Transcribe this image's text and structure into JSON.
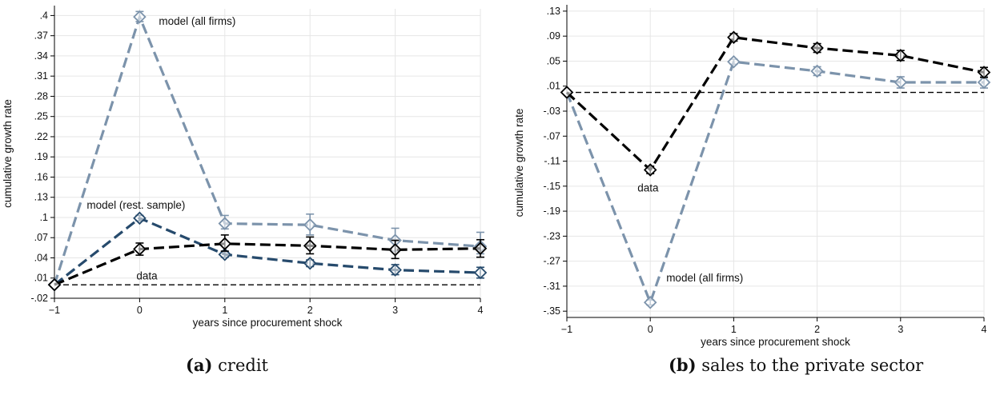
{
  "chart_data": [
    {
      "type": "line",
      "panel_label": "(a)",
      "caption": "credit",
      "xlabel": "years since procurement shock",
      "ylabel": "cumulative growth rate",
      "xlim": [
        -1,
        4
      ],
      "ylim": [
        -0.02,
        0.41
      ],
      "x_ticks": [
        "-1",
        "0",
        "1",
        "2",
        "3",
        "4"
      ],
      "y_ticks": [
        "-.02",
        ".01",
        ".04",
        ".07",
        ".1",
        ".13",
        ".16",
        ".19",
        ".22",
        ".25",
        ".28",
        ".31",
        ".34",
        ".37",
        ".4"
      ],
      "reference_line": 0,
      "grid": true,
      "series": [
        {
          "annotation": "model (all firms)",
          "color": "#7c93ab",
          "x": [
            -1,
            0,
            1,
            2,
            3,
            4
          ],
          "values": [
            0.0,
            0.398,
            0.091,
            0.089,
            0.066,
            0.057
          ],
          "ci_low": [
            0.0,
            0.391,
            0.083,
            0.074,
            0.05,
            0.046
          ],
          "ci_high": [
            0.0,
            0.406,
            0.103,
            0.105,
            0.084,
            0.078
          ]
        },
        {
          "annotation": "model (rest. sample)",
          "color": "#264a6c",
          "x": [
            -1,
            0,
            1,
            2,
            3,
            4
          ],
          "values": [
            0.0,
            0.099,
            0.045,
            0.032,
            0.022,
            0.018
          ],
          "ci_low": [
            0.0,
            0.095,
            0.041,
            0.027,
            0.015,
            0.01
          ],
          "ci_high": [
            0.0,
            0.103,
            0.049,
            0.037,
            0.03,
            0.026
          ]
        },
        {
          "annotation": "data",
          "color": "#000000",
          "x": [
            -1,
            0,
            1,
            2,
            3,
            4
          ],
          "values": [
            0.0,
            0.053,
            0.061,
            0.058,
            0.052,
            0.054
          ],
          "ci_low": [
            0.0,
            0.044,
            0.05,
            0.046,
            0.039,
            0.041
          ],
          "ci_high": [
            0.0,
            0.062,
            0.074,
            0.071,
            0.066,
            0.067
          ]
        }
      ]
    },
    {
      "type": "line",
      "panel_label": "(b)",
      "caption": "sales to the private sector",
      "xlabel": "years since procurement shock",
      "ylabel": "cumulative growth rate",
      "xlim": [
        -1,
        4
      ],
      "ylim": [
        -0.36,
        0.135
      ],
      "x_ticks": [
        "-1",
        "0",
        "1",
        "2",
        "3",
        "4"
      ],
      "y_ticks": [
        "-.35",
        "-.31",
        "-.27",
        "-.23",
        "-.19",
        "-.15",
        "-.11",
        "-.07",
        "-.03",
        ".01",
        ".05",
        ".09",
        ".13"
      ],
      "reference_line": 0,
      "grid": true,
      "series": [
        {
          "annotation": "model (all firms)",
          "color": "#7c93ab",
          "x": [
            -1,
            0,
            1,
            2,
            3,
            4
          ],
          "values": [
            0.0,
            -0.336,
            0.049,
            0.034,
            0.016,
            0.016
          ],
          "ci_low": [
            0.0,
            -0.34,
            0.045,
            0.027,
            0.007,
            0.007
          ],
          "ci_high": [
            0.0,
            -0.332,
            0.053,
            0.041,
            0.025,
            0.025
          ]
        },
        {
          "annotation": "data",
          "color": "#000000",
          "x": [
            -1,
            0,
            1,
            2,
            3,
            4
          ],
          "values": [
            0.0,
            -0.124,
            0.088,
            0.071,
            0.059,
            0.032
          ],
          "ci_low": [
            0.0,
            -0.13,
            0.082,
            0.064,
            0.051,
            0.024
          ],
          "ci_high": [
            0.0,
            -0.118,
            0.094,
            0.078,
            0.067,
            0.04
          ]
        }
      ]
    }
  ]
}
